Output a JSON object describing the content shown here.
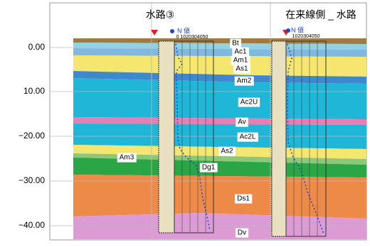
{
  "boreholes": [
    {
      "title": "水路③",
      "legend": "N 値",
      "scale": "0 1020304050"
    },
    {
      "title": "在来線側 _ 水路",
      "legend": "N 値",
      "scale": "1020304050"
    }
  ],
  "depth_labels": [
    "0.00",
    "10.00",
    "−20.00",
    "−30.00",
    "−40.00"
  ],
  "layers": [
    "Bt",
    "Ac1",
    "Am1",
    "As1",
    "Am2",
    "Ac2U",
    "Av",
    "Ac2L",
    "As2",
    "Am3",
    "Dg1",
    "Ds1",
    "Dv"
  ]
}
